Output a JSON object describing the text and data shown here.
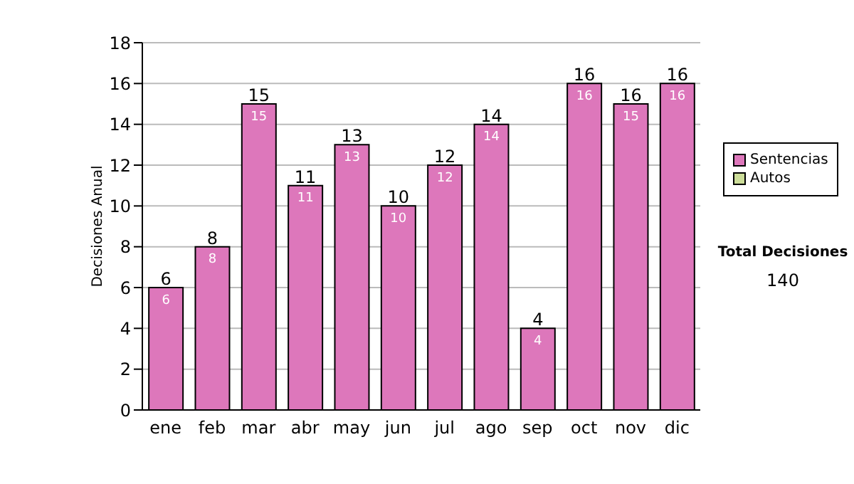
{
  "chart_data": {
    "type": "bar",
    "ylabel": "Decisiones Anual",
    "categories": [
      "ene",
      "feb",
      "mar",
      "abr",
      "may",
      "jun",
      "jul",
      "ago",
      "sep",
      "oct",
      "nov",
      "dic"
    ],
    "series": [
      {
        "name": "Sentencias",
        "color": "#dd77bb",
        "values": [
          6,
          8,
          15,
          11,
          13,
          10,
          12,
          14,
          4,
          16,
          15,
          16
        ],
        "value_labels": [
          "6",
          "8",
          "15",
          "11",
          "13",
          "10",
          "12",
          "14",
          "4",
          "16",
          "15",
          "16"
        ]
      },
      {
        "name": "Autos",
        "color": "#ccdd99",
        "values": [
          0,
          0,
          0,
          0,
          0,
          0,
          0,
          0,
          0,
          0,
          0,
          0
        ]
      }
    ],
    "stacked": true,
    "totals": [
      "6",
      "8",
      "15",
      "11",
      "13",
      "10",
      "12",
      "14",
      "4",
      "16",
      "16",
      "16"
    ],
    "ylim": [
      0,
      18
    ],
    "yticks": [
      0,
      2,
      4,
      6,
      8,
      10,
      12,
      14,
      16,
      18
    ],
    "grid": "y",
    "legend": "right",
    "annotations": [
      "Total Decisiones",
      "140"
    ]
  }
}
